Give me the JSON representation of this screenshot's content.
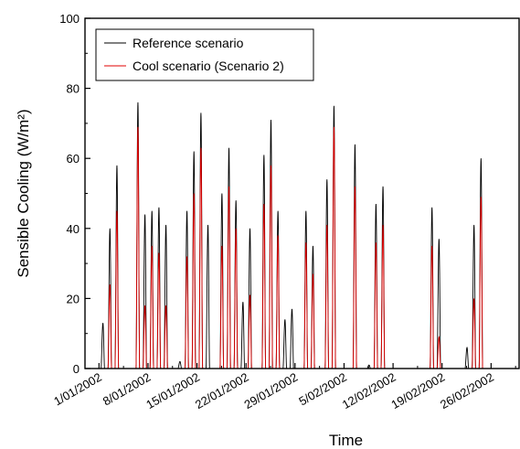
{
  "chart_data": {
    "type": "line",
    "title": "",
    "xlabel": "Time",
    "ylabel": "Sensible Cooling (W/m²)",
    "ylim": [
      0,
      100
    ],
    "xlim": [
      "2001-12-30",
      "2002-03-02"
    ],
    "yticks": [
      0,
      20,
      40,
      60,
      80,
      100
    ],
    "xticks": [
      "2002-01-01",
      "2002-01-08",
      "2002-01-15",
      "2002-01-22",
      "2002-01-29",
      "2002-02-05",
      "2002-02-12",
      "2002-02-19",
      "2002-02-26"
    ],
    "xtick_labels": [
      "1/01/2002",
      "8/01/2002",
      "15/01/2002",
      "22/01/2002",
      "29/01/2002",
      "5/02/2002",
      "12/02/2002",
      "19/02/2002",
      "26/02/2002"
    ],
    "grid": false,
    "legend_position": "top-left",
    "series": [
      {
        "name": "Reference scenario",
        "color": "#000000",
        "daily_peaks": [
          {
            "date": "2002-01-01",
            "value": 13
          },
          {
            "date": "2002-01-02",
            "value": 40
          },
          {
            "date": "2002-01-03",
            "value": 58
          },
          {
            "date": "2002-01-06",
            "value": 76
          },
          {
            "date": "2002-01-07",
            "value": 44
          },
          {
            "date": "2002-01-08",
            "value": 45
          },
          {
            "date": "2002-01-09",
            "value": 46
          },
          {
            "date": "2002-01-10",
            "value": 41
          },
          {
            "date": "2002-01-12",
            "value": 2
          },
          {
            "date": "2002-01-13",
            "value": 45
          },
          {
            "date": "2002-01-14",
            "value": 62
          },
          {
            "date": "2002-01-15",
            "value": 73
          },
          {
            "date": "2002-01-16",
            "value": 41
          },
          {
            "date": "2002-01-18",
            "value": 50
          },
          {
            "date": "2002-01-19",
            "value": 63
          },
          {
            "date": "2002-01-20",
            "value": 48
          },
          {
            "date": "2002-01-21",
            "value": 19
          },
          {
            "date": "2002-01-22",
            "value": 40
          },
          {
            "date": "2002-01-24",
            "value": 61
          },
          {
            "date": "2002-01-25",
            "value": 71
          },
          {
            "date": "2002-01-26",
            "value": 45
          },
          {
            "date": "2002-01-27",
            "value": 14
          },
          {
            "date": "2002-01-28",
            "value": 17
          },
          {
            "date": "2002-01-30",
            "value": 45
          },
          {
            "date": "2002-01-31",
            "value": 35
          },
          {
            "date": "2002-02-02",
            "value": 54
          },
          {
            "date": "2002-02-03",
            "value": 75
          },
          {
            "date": "2002-02-06",
            "value": 64
          },
          {
            "date": "2002-02-08",
            "value": 1
          },
          {
            "date": "2002-02-09",
            "value": 47
          },
          {
            "date": "2002-02-10",
            "value": 52
          },
          {
            "date": "2002-02-17",
            "value": 46
          },
          {
            "date": "2002-02-18",
            "value": 37
          },
          {
            "date": "2002-02-22",
            "value": 6
          },
          {
            "date": "2002-02-23",
            "value": 41
          },
          {
            "date": "2002-02-24",
            "value": 60
          }
        ]
      },
      {
        "name": "Cool scenario (Scenario 2)",
        "color": "#e00000",
        "daily_peaks": [
          {
            "date": "2002-01-02",
            "value": 24
          },
          {
            "date": "2002-01-03",
            "value": 45
          },
          {
            "date": "2002-01-06",
            "value": 69
          },
          {
            "date": "2002-01-07",
            "value": 18
          },
          {
            "date": "2002-01-08",
            "value": 35
          },
          {
            "date": "2002-01-09",
            "value": 33
          },
          {
            "date": "2002-01-10",
            "value": 18
          },
          {
            "date": "2002-01-13",
            "value": 32
          },
          {
            "date": "2002-01-14",
            "value": 50
          },
          {
            "date": "2002-01-15",
            "value": 63
          },
          {
            "date": "2002-01-18",
            "value": 35
          },
          {
            "date": "2002-01-19",
            "value": 52
          },
          {
            "date": "2002-01-20",
            "value": 40
          },
          {
            "date": "2002-01-22",
            "value": 21
          },
          {
            "date": "2002-01-24",
            "value": 47
          },
          {
            "date": "2002-01-25",
            "value": 58
          },
          {
            "date": "2002-01-26",
            "value": 38
          },
          {
            "date": "2002-01-30",
            "value": 36
          },
          {
            "date": "2002-01-31",
            "value": 27
          },
          {
            "date": "2002-02-02",
            "value": 41
          },
          {
            "date": "2002-02-03",
            "value": 69
          },
          {
            "date": "2002-02-06",
            "value": 52
          },
          {
            "date": "2002-02-09",
            "value": 36
          },
          {
            "date": "2002-02-10",
            "value": 41
          },
          {
            "date": "2002-02-17",
            "value": 35
          },
          {
            "date": "2002-02-18",
            "value": 9
          },
          {
            "date": "2002-02-23",
            "value": 20
          },
          {
            "date": "2002-02-24",
            "value": 49
          }
        ]
      }
    ]
  }
}
